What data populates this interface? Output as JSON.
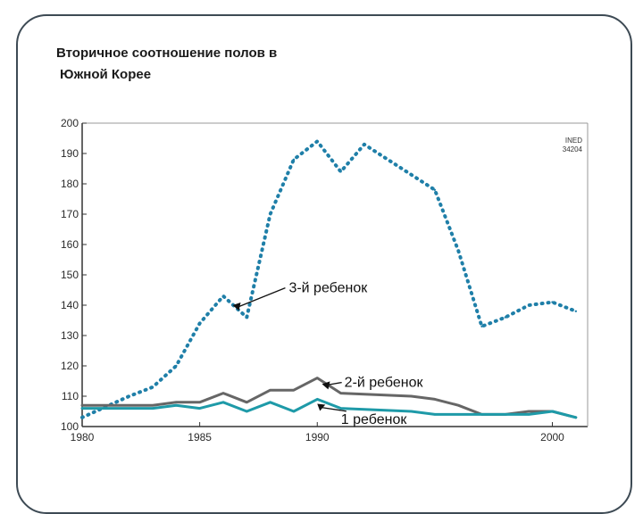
{
  "slide": {
    "title_line1": "Вторичное соотношение полов в",
    "title_line2": "Южной Корее"
  },
  "chart_data": {
    "type": "line",
    "title": "",
    "xlabel": "",
    "ylabel": "",
    "xlim": [
      1980,
      2001.5
    ],
    "ylim": [
      100,
      200
    ],
    "x_ticks": [
      1980,
      1985,
      1990,
      2000
    ],
    "y_ticks": [
      100,
      110,
      120,
      130,
      140,
      150,
      160,
      170,
      180,
      190,
      200
    ],
    "grid": false,
    "corner_label": [
      "INED",
      "34204"
    ],
    "colors": {
      "third_child": "#1f7fa8",
      "second_child": "#666666",
      "first_child": "#1e9aa8"
    },
    "series": [
      {
        "name": "3-й ребенок",
        "style": "dotted",
        "x": [
          1980,
          1982,
          1983,
          1984,
          1985,
          1986,
          1987,
          1988,
          1989,
          1990,
          1991,
          1992,
          1994,
          1995,
          1996,
          1997,
          1998,
          1999,
          2000,
          2001
        ],
        "y": [
          103,
          110,
          113,
          120,
          134,
          143,
          136,
          170,
          188,
          194,
          184,
          193,
          183,
          178,
          158,
          133,
          136,
          140,
          141,
          138
        ]
      },
      {
        "name": "2-й ребенок",
        "style": "solid",
        "x": [
          1980,
          1982,
          1983,
          1984,
          1985,
          1986,
          1987,
          1988,
          1989,
          1990,
          1991,
          1994,
          1995,
          1996,
          1997,
          1998,
          1999,
          2000,
          2001
        ],
        "y": [
          107,
          107,
          107,
          108,
          108,
          111,
          108,
          112,
          112,
          116,
          111,
          110,
          109,
          107,
          104,
          104,
          105,
          105,
          103
        ]
      },
      {
        "name": "1 ребенок",
        "style": "solid",
        "x": [
          1980,
          1982,
          1983,
          1984,
          1985,
          1986,
          1987,
          1988,
          1989,
          1990,
          1991,
          1994,
          1995,
          1996,
          1997,
          1998,
          1999,
          2000,
          2001
        ],
        "y": [
          106,
          106,
          106,
          107,
          106,
          108,
          105,
          108,
          105,
          109,
          106,
          105,
          104,
          104,
          104,
          104,
          104,
          105,
          103
        ]
      }
    ],
    "annotations": [
      {
        "text": "3-й ребенок",
        "series": "3-й ребенок",
        "x": 1987.5,
        "y": 146
      },
      {
        "text": "2-й ребенок",
        "series": "2-й ребенок",
        "x": 1990.7,
        "y": 116
      },
      {
        "text": "1 ребенок",
        "series": "1 ребенок",
        "x": 1990.4,
        "y": 108
      }
    ]
  }
}
